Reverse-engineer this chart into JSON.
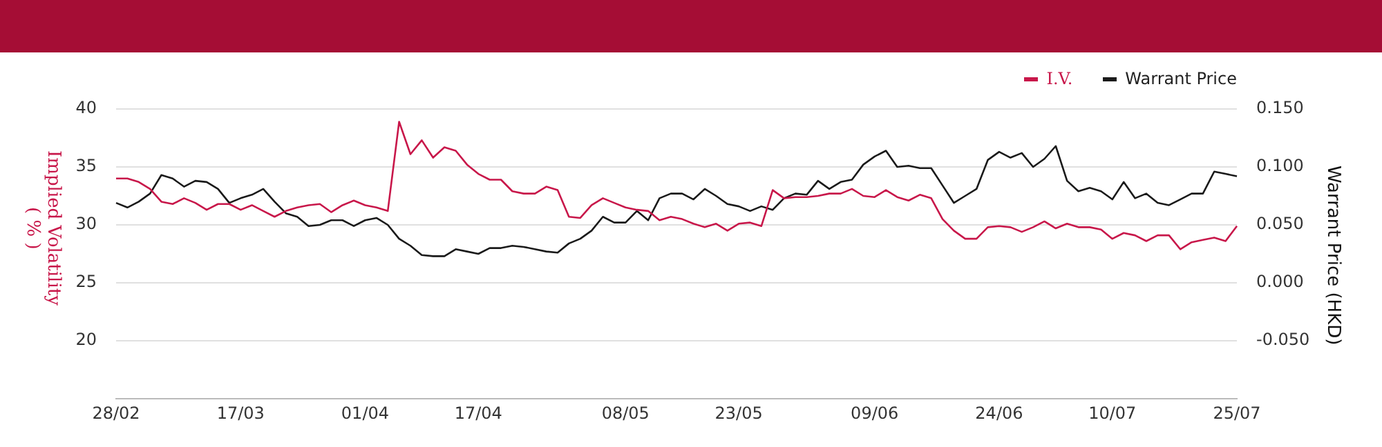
{
  "chart_data": {
    "type": "line",
    "categories": [
      "28/02",
      null,
      null,
      null,
      null,
      null,
      null,
      null,
      null,
      null,
      null,
      "17/03",
      null,
      null,
      null,
      null,
      null,
      null,
      null,
      null,
      null,
      null,
      "01/04",
      null,
      null,
      null,
      null,
      null,
      null,
      null,
      null,
      null,
      "17/04",
      null,
      null,
      null,
      null,
      null,
      null,
      null,
      null,
      null,
      null,
      null,
      null,
      "08/05",
      null,
      null,
      null,
      null,
      null,
      null,
      null,
      null,
      null,
      "23/05",
      null,
      null,
      null,
      null,
      null,
      null,
      null,
      null,
      null,
      null,
      null,
      "09/06",
      null,
      null,
      null,
      null,
      null,
      null,
      null,
      null,
      null,
      null,
      "24/06",
      null,
      null,
      null,
      null,
      null,
      null,
      null,
      null,
      null,
      "10/07",
      null,
      null,
      null,
      null,
      null,
      null,
      null,
      null,
      null,
      null,
      "25/07"
    ],
    "series": [
      {
        "name": "I.V.",
        "color": "#c8174a",
        "values": [
          34.0,
          34.0,
          33.7,
          33.1,
          32.0,
          31.8,
          32.3,
          31.9,
          31.3,
          31.8,
          31.8,
          31.3,
          31.7,
          31.2,
          30.7,
          31.2,
          31.5,
          31.7,
          31.8,
          31.1,
          31.7,
          32.1,
          31.7,
          31.5,
          31.2,
          38.9,
          36.1,
          37.3,
          35.8,
          36.7,
          36.4,
          35.2,
          34.4,
          33.9,
          33.9,
          32.9,
          32.7,
          32.7,
          33.3,
          33.0,
          30.7,
          30.6,
          31.7,
          32.3,
          31.9,
          31.5,
          31.3,
          31.2,
          30.4,
          30.7,
          30.5,
          30.1,
          29.8,
          30.1,
          29.5,
          30.1,
          30.2,
          29.9,
          33.0,
          32.3,
          32.4,
          32.4,
          32.5,
          32.7,
          32.7,
          33.1,
          32.5,
          32.4,
          33.0,
          32.4,
          32.1,
          32.6,
          32.3,
          30.5,
          29.5,
          28.8,
          28.8,
          29.8,
          29.9,
          29.8,
          29.4,
          29.8,
          30.3,
          29.7,
          30.1,
          29.8,
          29.8,
          29.6,
          28.8,
          29.3,
          29.1,
          28.6,
          29.1,
          29.1,
          27.9,
          28.5,
          28.7,
          28.9,
          28.6,
          29.9
        ]
      },
      {
        "name": "Warrant Price",
        "color": "#1a1a1a",
        "axis": "y2",
        "values": [
          0.069,
          0.065,
          0.07,
          0.077,
          0.093,
          0.09,
          0.083,
          0.088,
          0.087,
          0.081,
          0.069,
          0.073,
          0.076,
          0.081,
          0.07,
          0.06,
          0.057,
          0.049,
          0.05,
          0.054,
          0.054,
          0.049,
          0.054,
          0.056,
          0.05,
          0.038,
          0.032,
          0.024,
          0.023,
          0.023,
          0.029,
          0.027,
          0.025,
          0.03,
          0.03,
          0.032,
          0.031,
          0.029,
          0.027,
          0.026,
          0.034,
          0.038,
          0.045,
          0.057,
          0.052,
          0.052,
          0.062,
          0.054,
          0.073,
          0.077,
          0.077,
          0.072,
          0.081,
          0.075,
          0.068,
          0.066,
          0.062,
          0.066,
          0.063,
          0.073,
          0.077,
          0.076,
          0.088,
          0.081,
          0.087,
          0.089,
          0.102,
          0.109,
          0.114,
          0.1,
          0.101,
          0.099,
          0.099,
          0.084,
          0.069,
          0.075,
          0.081,
          0.106,
          0.113,
          0.108,
          0.112,
          0.1,
          0.107,
          0.118,
          0.088,
          0.079,
          0.082,
          0.079,
          0.072,
          0.087,
          0.073,
          0.077,
          0.069,
          0.067,
          0.072,
          0.077,
          0.077,
          0.096,
          0.094,
          0.092
        ]
      }
    ],
    "ylabel": "Implied Volatility ( % )",
    "y2label": "Warrant Price (HKD)",
    "ylim": [
      15,
      40
    ],
    "yticks": [
      20,
      25,
      30,
      35,
      40
    ],
    "y2lim": [
      -0.1,
      0.15
    ],
    "y2ticks": [
      {
        "value": -0.05,
        "label": "-0.050"
      },
      {
        "value": 0,
        "label": "0.000"
      },
      {
        "value": 0.05,
        "label": "0.050"
      },
      {
        "value": 0.1,
        "label": "0.100"
      },
      {
        "value": 0.15,
        "label": "0.150"
      }
    ],
    "grid": "y",
    "legend": "top right",
    "marker": "none",
    "line_style": "solid"
  }
}
